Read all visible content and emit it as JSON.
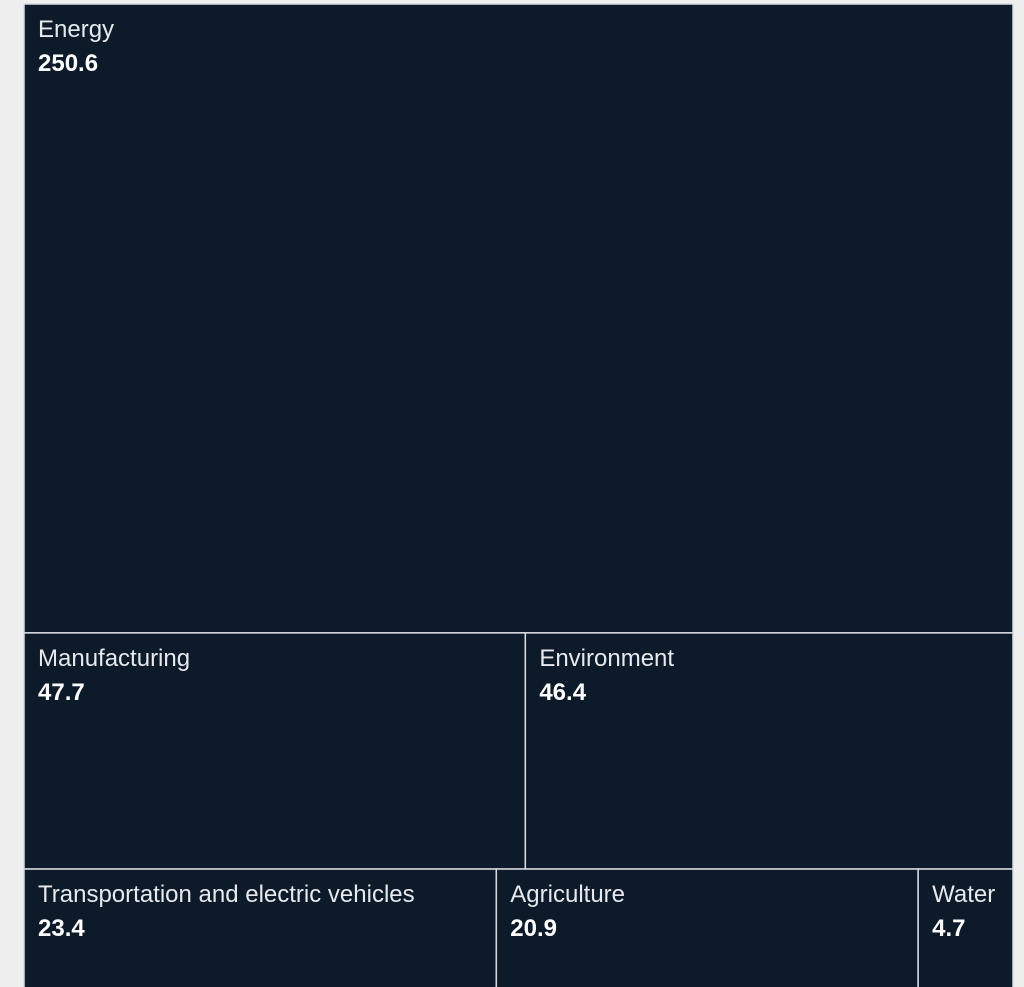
{
  "chart_data": {
    "type": "treemap",
    "categories": [
      "Energy",
      "Manufacturing",
      "Environment",
      "Transportation and electric vehicles",
      "Agriculture",
      "Water"
    ],
    "values": [
      250.6,
      47.7,
      46.4,
      23.4,
      20.9,
      4.7
    ],
    "color": "#0c1a29"
  }
}
